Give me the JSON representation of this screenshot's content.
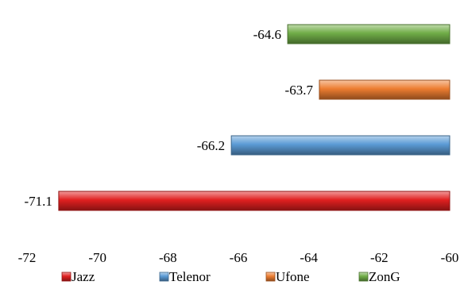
{
  "chart_data": {
    "type": "bar",
    "orientation": "horizontal",
    "title": "",
    "xlabel": "",
    "ylabel": "",
    "xlim": [
      -72,
      -60
    ],
    "x_ticks": [
      -72,
      -70,
      -68,
      -66,
      -64,
      -62,
      -60
    ],
    "x_tick_labels": [
      "-72",
      "-70",
      "-68",
      "-66",
      "-64",
      "-62",
      "-60"
    ],
    "grid": false,
    "legend_position": "bottom",
    "series": [
      {
        "name": "Jazz",
        "value": -71.1,
        "label": "-71.1",
        "color": "#e02020"
      },
      {
        "name": "Telenor",
        "value": -66.2,
        "label": "-66.2",
        "color": "#5b9bd5"
      },
      {
        "name": "Ufone",
        "value": -63.7,
        "label": "-63.7",
        "color": "#ed7d31"
      },
      {
        "name": "ZonG",
        "value": -64.6,
        "label": "-64.6",
        "color": "#70ad47"
      }
    ]
  }
}
